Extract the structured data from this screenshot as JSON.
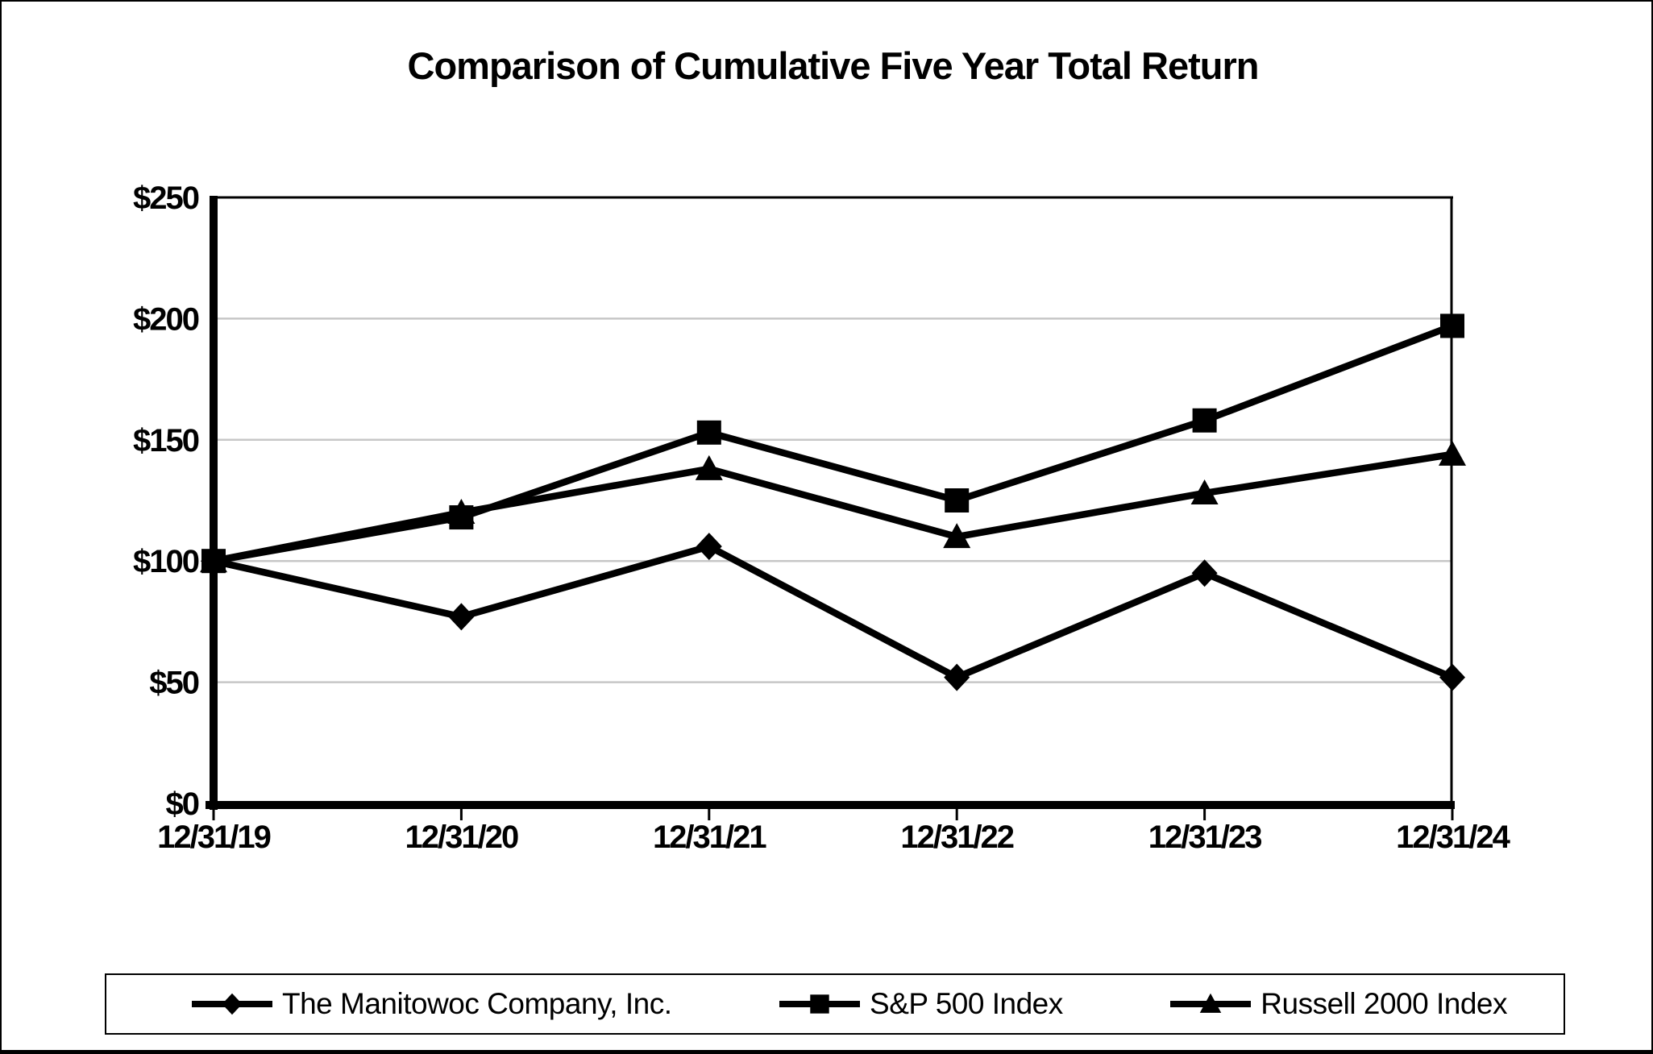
{
  "title": "Comparison of Cumulative Five Year Total Return",
  "chart_data": {
    "type": "line",
    "title": "Comparison of Cumulative Five Year Total Return",
    "categories": [
      "12/31/19",
      "12/31/20",
      "12/31/21",
      "12/31/22",
      "12/31/23",
      "12/31/24"
    ],
    "series": [
      {
        "name": "The Manitowoc Company, Inc.",
        "marker": "diamond",
        "values": [
          100,
          77,
          106,
          52,
          95,
          52
        ]
      },
      {
        "name": "S&P 500 Index",
        "marker": "square",
        "values": [
          100,
          118,
          153,
          125,
          158,
          197
        ]
      },
      {
        "name": "Russell 2000 Index",
        "marker": "triangle",
        "values": [
          100,
          120,
          138,
          110,
          128,
          144
        ]
      }
    ],
    "ylim": [
      0,
      250
    ],
    "yticks": [
      {
        "value": 0,
        "label": "$0"
      },
      {
        "value": 50,
        "label": "$50"
      },
      {
        "value": 100,
        "label": "$100"
      },
      {
        "value": 150,
        "label": "$150"
      },
      {
        "value": 200,
        "label": "$200"
      },
      {
        "value": 250,
        "label": "$250"
      }
    ],
    "grid": "horizontal",
    "legend_position": "bottom",
    "colors": {
      "series": "#000000",
      "gridline": "#c7c7c7",
      "axis": "#000000",
      "plot_border": "#000000",
      "background": "#ffffff"
    }
  }
}
